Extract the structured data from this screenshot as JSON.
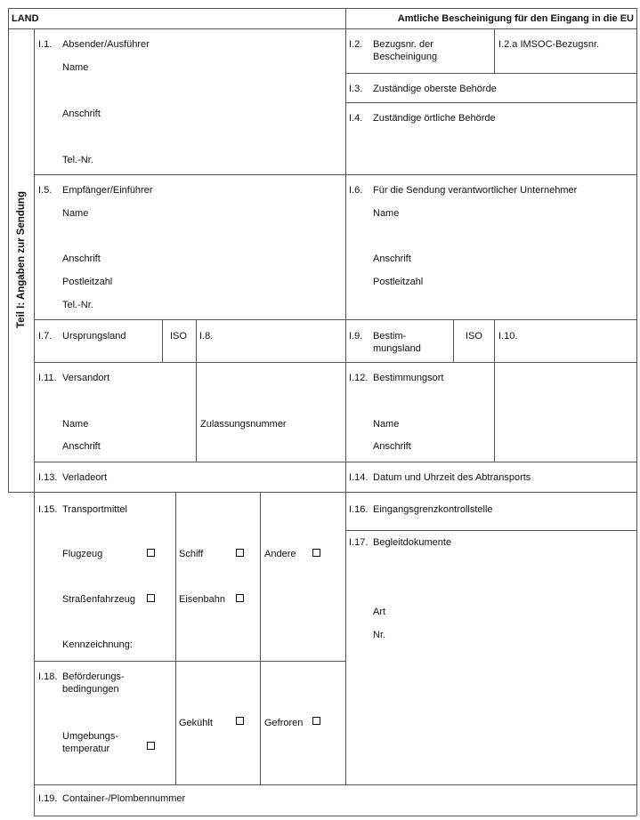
{
  "header": {
    "land": "LAND",
    "title": "Amtliche Bescheinigung für den Eingang in die EU"
  },
  "part_label": "Teil I: Angaben zur Sendung",
  "i1": {
    "num": "I.1.",
    "title": "Absender/Ausführer",
    "name": "Name",
    "address": "Anschrift",
    "phone": "Tel.-Nr."
  },
  "i2": {
    "num": "I.2.",
    "line1": "Bezugsnr. der",
    "line2": "Bescheinigung"
  },
  "i2a": {
    "label": "I.2.a IMSOC-Bezugsnr."
  },
  "i3": {
    "num": "I.3.",
    "title": "Zuständige oberste Behörde"
  },
  "i4": {
    "num": "I.4.",
    "title": "Zuständige örtliche Behörde"
  },
  "i5": {
    "num": "I.5.",
    "title": "Empfänger/Einführer",
    "name": "Name",
    "address": "Anschrift",
    "postcode": "Postleitzahl",
    "phone": "Tel.-Nr."
  },
  "i6": {
    "num": "I.6.",
    "title": "Für die Sendung verantwortlicher Unternehmer",
    "name": "Name",
    "address": "Anschrift",
    "postcode": "Postleitzahl"
  },
  "i7": {
    "num": "I.7.",
    "title": "Ursprungsland",
    "iso": "ISO"
  },
  "i8": {
    "num": "I.8."
  },
  "i9": {
    "num": "I.9.",
    "line1": "Bestim-",
    "line2": "mungsland",
    "iso": "ISO"
  },
  "i10": {
    "num": "I.10."
  },
  "i11": {
    "num": "I.11.",
    "title": "Versandort",
    "name": "Name",
    "address": "Anschrift",
    "approval": "Zulassungsnummer"
  },
  "i12": {
    "num": "I.12.",
    "title": "Bestimmungsort",
    "name": "Name",
    "address": "Anschrift"
  },
  "i13": {
    "num": "I.13.",
    "title": "Verladeort"
  },
  "i14": {
    "num": "I.14.",
    "title": "Datum und Uhrzeit des Abtransports"
  },
  "i15": {
    "num": "I.15.",
    "title": "Transportmittel",
    "aircraft": "Flugzeug",
    "ship": "Schiff",
    "other": "Andere",
    "road": "Straßenfahrzeug",
    "rail": "Eisenbahn",
    "identification": "Kennzeichnung:"
  },
  "i16": {
    "num": "I.16.",
    "title": "Eingangsgrenzkontrollstelle"
  },
  "i17": {
    "num": "I.17.",
    "title": "Begleitdokumente",
    "type": "Art",
    "number": "Nr."
  },
  "i18": {
    "num": "I.18.",
    "line1": "Beförderungs-",
    "line2": "bedingungen",
    "ambient1": "Umgebungs-",
    "ambient2": "temperatur",
    "chilled": "Gekühlt",
    "frozen": "Gefroren"
  },
  "i19": {
    "num": "I.19.",
    "title": "Container-/Plombennummer"
  }
}
